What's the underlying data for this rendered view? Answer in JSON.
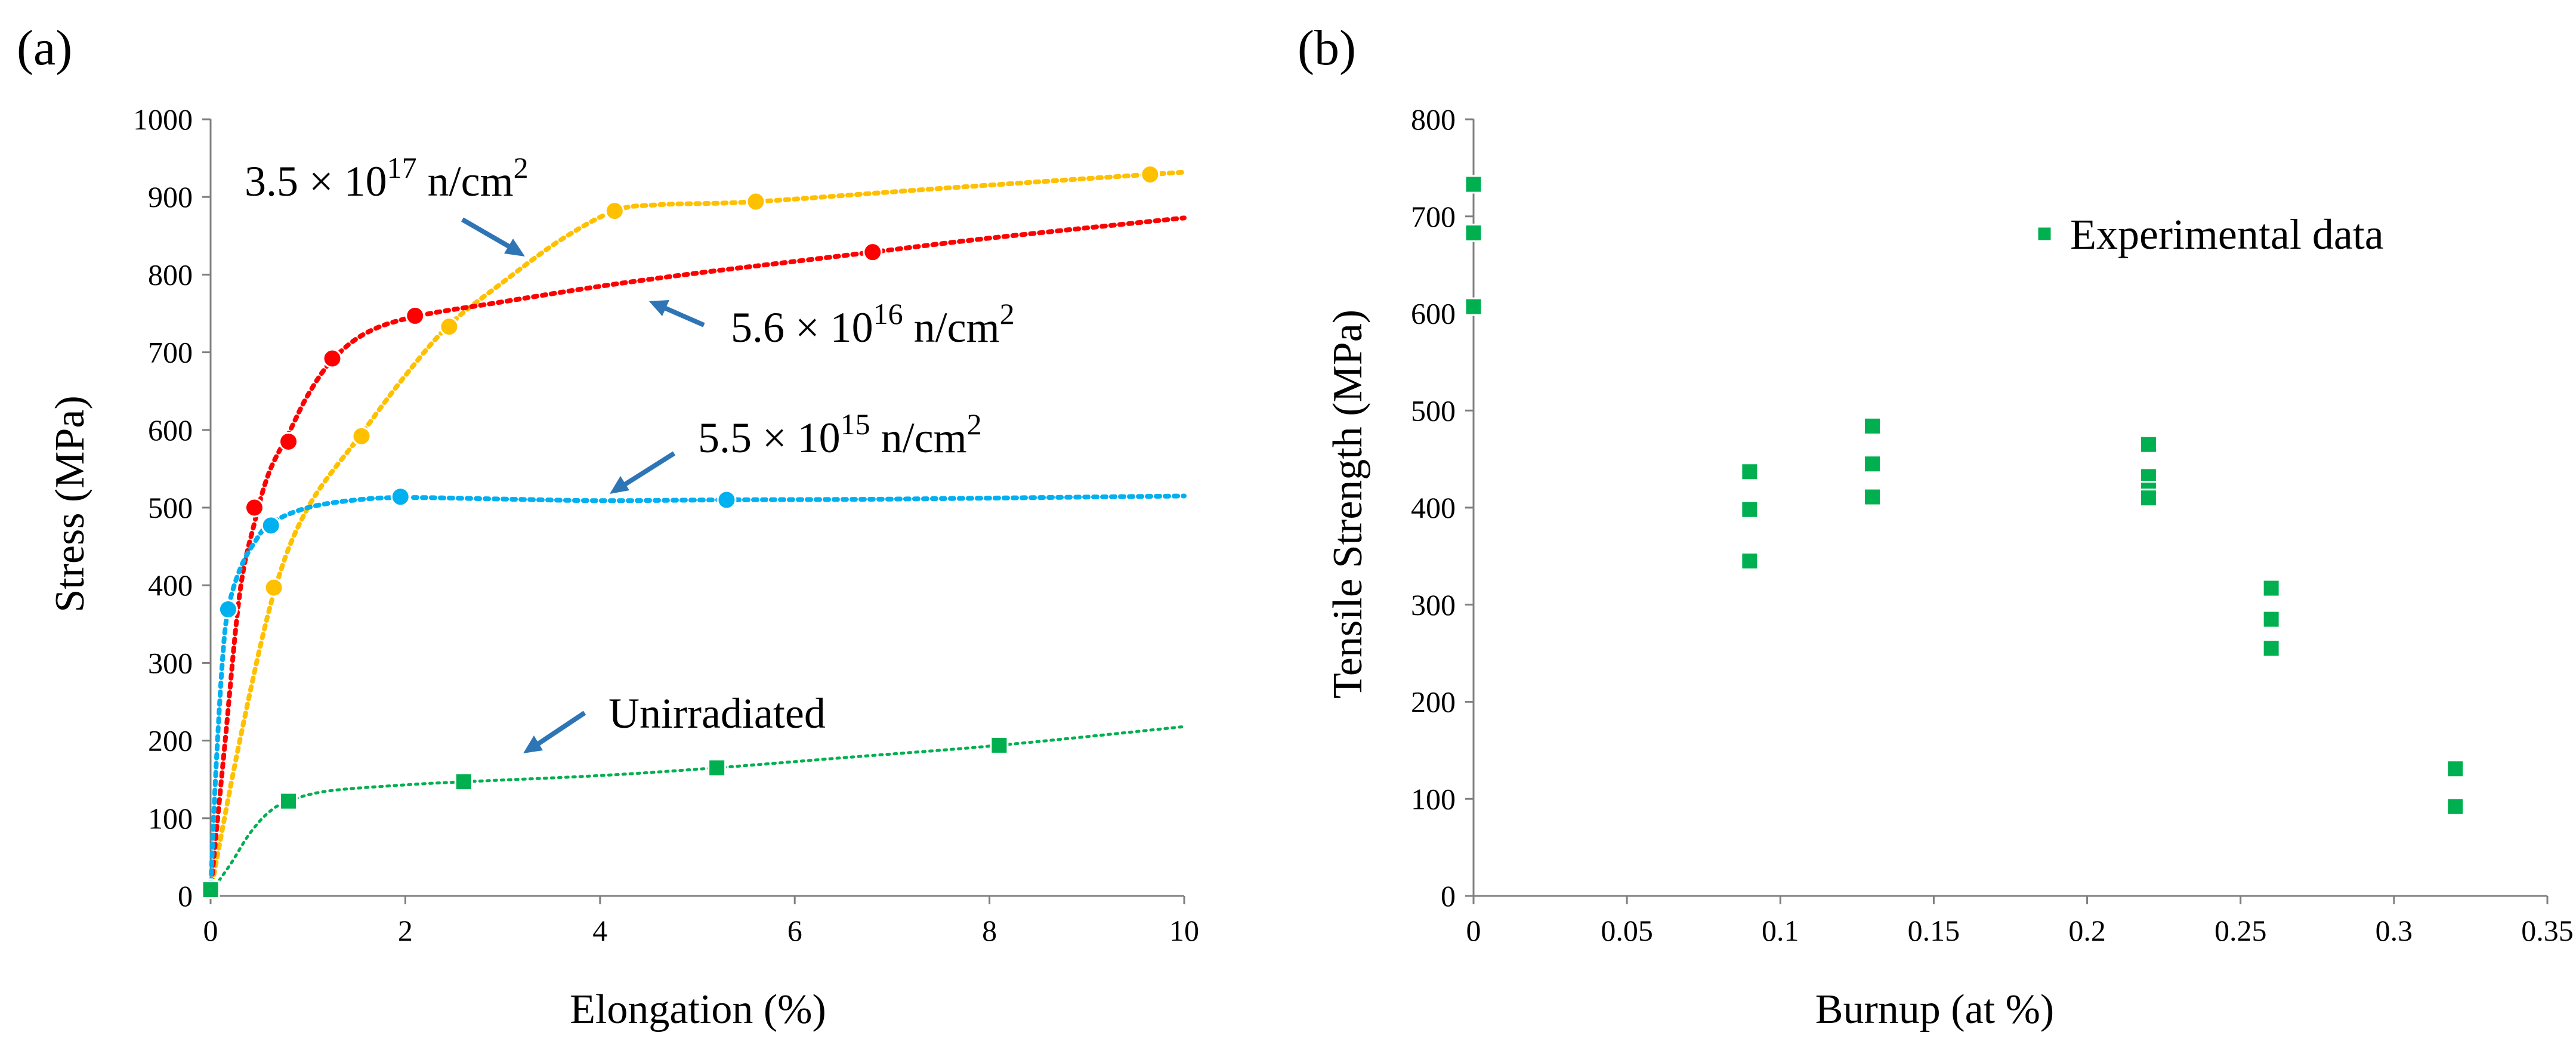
{
  "chart_data": [
    {
      "panel_label": "(a)",
      "type": "line",
      "xlabel": "Elongation (%)",
      "ylabel": "Stress  (MPa)",
      "xlim": [
        0,
        10
      ],
      "ylim": [
        0,
        1000
      ],
      "xticks": [
        "0",
        "2",
        "4",
        "6",
        "8",
        "10"
      ],
      "yticks": [
        "0",
        "100",
        "200",
        "300",
        "400",
        "500",
        "600",
        "700",
        "800",
        "900",
        "1000"
      ],
      "grid": false,
      "series": [
        {
          "name": "3.5 × 10^17 n/cm^2",
          "color": "#FFC000",
          "marker": "circle",
          "points": [
            [
              0,
              10
            ],
            [
              0.65,
              397
            ],
            [
              1.55,
              592
            ],
            [
              2.45,
              733
            ],
            [
              4.15,
              882
            ],
            [
              5.6,
              894
            ],
            [
              9.65,
              929
            ]
          ],
          "trend": [
            [
              0,
              5
            ],
            [
              0.3,
              200
            ],
            [
              0.65,
              390
            ],
            [
              1.0,
              500
            ],
            [
              1.55,
              595
            ],
            [
              2.0,
              670
            ],
            [
              2.45,
              735
            ],
            [
              3.0,
              790
            ],
            [
              3.6,
              845
            ],
            [
              4.15,
              882
            ],
            [
              4.6,
              890
            ],
            [
              5.6,
              894
            ],
            [
              7.5,
              911
            ],
            [
              10.0,
              932
            ]
          ]
        },
        {
          "name": "5.6 × 10^16 n/cm^2",
          "color": "#FF0000",
          "marker": "circle",
          "points": [
            [
              0,
              10
            ],
            [
              0.45,
              500
            ],
            [
              0.8,
              585
            ],
            [
              1.25,
              692
            ],
            [
              2.1,
              747
            ],
            [
              6.8,
              829
            ]
          ],
          "trend": [
            [
              0,
              5
            ],
            [
              0.15,
              200
            ],
            [
              0.3,
              390
            ],
            [
              0.45,
              480
            ],
            [
              0.6,
              545
            ],
            [
              0.8,
              595
            ],
            [
              1.0,
              645
            ],
            [
              1.25,
              690
            ],
            [
              1.6,
              725
            ],
            [
              2.1,
              746
            ],
            [
              3.0,
              765
            ],
            [
              4.0,
              785
            ],
            [
              5.0,
              802
            ],
            [
              6.0,
              817
            ],
            [
              6.8,
              829
            ],
            [
              8.0,
              847
            ],
            [
              10.0,
              873
            ]
          ]
        },
        {
          "name": "5.5 × 10^15 n/cm^2",
          "color": "#00B0F0",
          "marker": "circle",
          "points": [
            [
              0,
              10
            ],
            [
              0.18,
              369
            ],
            [
              0.62,
              477
            ],
            [
              1.95,
              514
            ],
            [
              5.3,
              510
            ]
          ],
          "trend": [
            [
              0,
              5
            ],
            [
              0.05,
              150
            ],
            [
              0.12,
              300
            ],
            [
              0.18,
              369
            ],
            [
              0.3,
              420
            ],
            [
              0.45,
              455
            ],
            [
              0.62,
              480
            ],
            [
              1.0,
              500
            ],
            [
              1.5,
              510
            ],
            [
              2.0,
              513
            ],
            [
              3.0,
              511
            ],
            [
              4.0,
              509
            ],
            [
              5.3,
              510
            ],
            [
              7.0,
              511
            ],
            [
              10.0,
              515
            ]
          ]
        },
        {
          "name": "Unirradiated",
          "color": "#00B050",
          "marker": "square",
          "points": [
            [
              0,
              8
            ],
            [
              0.8,
              122
            ],
            [
              2.6,
              147
            ],
            [
              5.2,
              165
            ],
            [
              8.1,
              194
            ]
          ],
          "trend": [
            [
              0,
              5
            ],
            [
              0.2,
              40
            ],
            [
              0.4,
              80
            ],
            [
              0.6,
              108
            ],
            [
              0.8,
              122
            ],
            [
              1.2,
              135
            ],
            [
              2.0,
              143
            ],
            [
              2.6,
              147
            ],
            [
              4.0,
              155
            ],
            [
              5.2,
              165
            ],
            [
              6.5,
              178
            ],
            [
              8.1,
              194
            ],
            [
              10.0,
              218
            ]
          ]
        }
      ],
      "annotations": [
        {
          "base": "3.5 × 10",
          "exp": "17",
          "unit": " n/cm",
          "unit_exp": "2"
        },
        {
          "base": "5.6 × 10",
          "exp": "16",
          "unit": " n/cm",
          "unit_exp": "2"
        },
        {
          "base": "5.5 × 10",
          "exp": "15",
          "unit": " n/cm",
          "unit_exp": "2"
        },
        {
          "text": "Unirradiated"
        }
      ]
    },
    {
      "panel_label": "(b)",
      "type": "scatter",
      "xlabel": "Burnup (at %)",
      "ylabel": "Tensile Strength (MPa)",
      "xlim": [
        0,
        0.35
      ],
      "ylim": [
        0,
        800
      ],
      "xticks": [
        "0",
        "0.05",
        "0.1",
        "0.15",
        "0.2",
        "0.25",
        "0.3",
        "0.35"
      ],
      "yticks": [
        "0",
        "100",
        "200",
        "300",
        "400",
        "500",
        "600",
        "700",
        "800"
      ],
      "grid": false,
      "legend": {
        "label": "Experimental data",
        "placement": "top-right"
      },
      "series": [
        {
          "name": "Experimental data",
          "color": "#00B050",
          "marker": "square",
          "points": [
            [
              0,
              733
            ],
            [
              0,
              683
            ],
            [
              0,
              607
            ],
            [
              0.09,
              437
            ],
            [
              0.09,
              398
            ],
            [
              0.09,
              345
            ],
            [
              0.13,
              484
            ],
            [
              0.13,
              445
            ],
            [
              0.13,
              411
            ],
            [
              0.22,
              465
            ],
            [
              0.22,
              432
            ],
            [
              0.22,
              418
            ],
            [
              0.22,
              410
            ],
            [
              0.26,
              317
            ],
            [
              0.26,
              285
            ],
            [
              0.26,
              255
            ],
            [
              0.32,
              131
            ],
            [
              0.32,
              92
            ]
          ]
        }
      ]
    }
  ]
}
